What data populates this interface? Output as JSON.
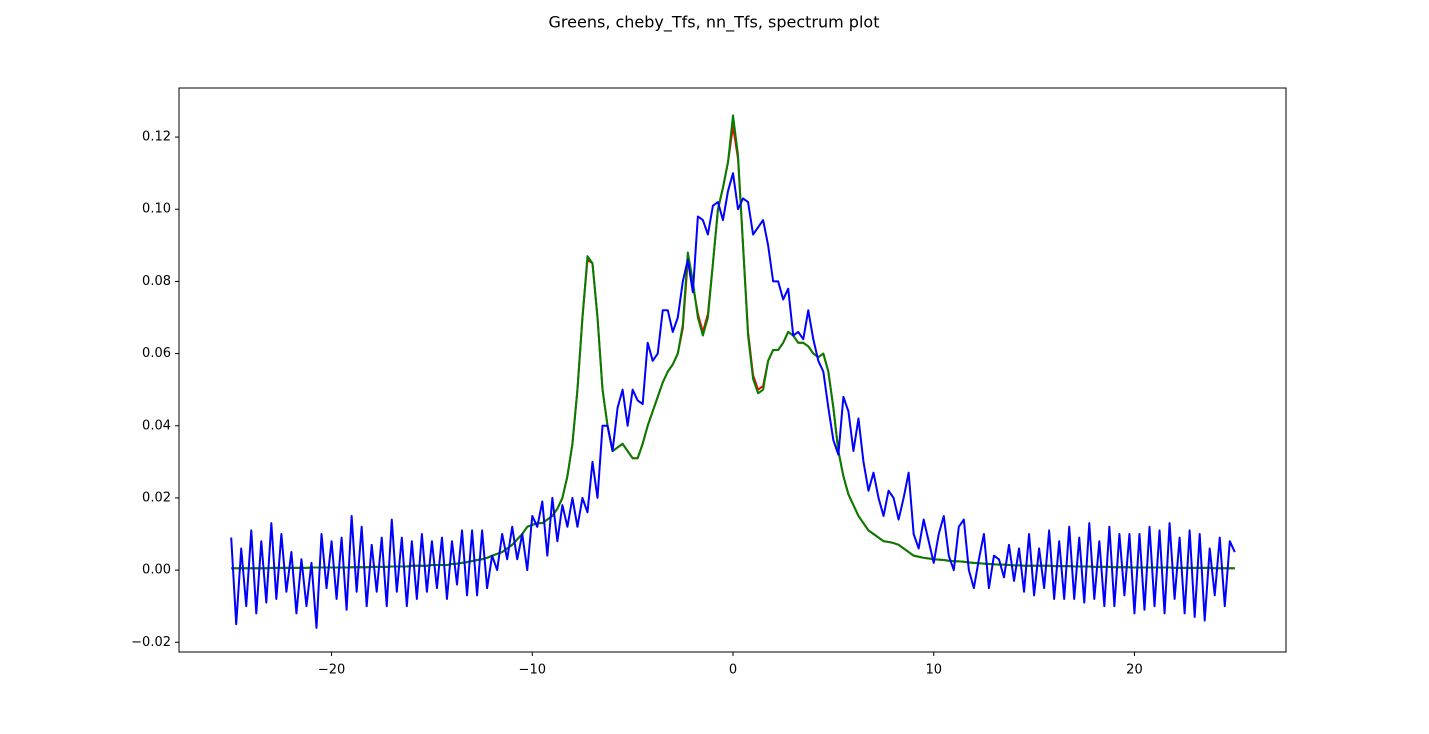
{
  "chart_data": {
    "type": "line",
    "title": "Greens, cheby_Tfs, nn_Tfs, spectrum plot",
    "x": [
      -25,
      -24.75,
      -24.5,
      -24.25,
      -24,
      -23.75,
      -23.5,
      -23.25,
      -23,
      -22.75,
      -22.5,
      -22.25,
      -22,
      -21.75,
      -21.5,
      -21.25,
      -21,
      -20.75,
      -20.5,
      -20.25,
      -20,
      -19.75,
      -19.5,
      -19.25,
      -19,
      -18.75,
      -18.5,
      -18.25,
      -18,
      -17.75,
      -17.5,
      -17.25,
      -17,
      -16.75,
      -16.5,
      -16.25,
      -16,
      -15.75,
      -15.5,
      -15.25,
      -15,
      -14.75,
      -14.5,
      -14.25,
      -14,
      -13.75,
      -13.5,
      -13.25,
      -13,
      -12.75,
      -12.5,
      -12.25,
      -12,
      -11.75,
      -11.5,
      -11.25,
      -11,
      -10.75,
      -10.5,
      -10.25,
      -10,
      -9.75,
      -9.5,
      -9.25,
      -9,
      -8.75,
      -8.5,
      -8.25,
      -8,
      -7.75,
      -7.5,
      -7.25,
      -7,
      -6.75,
      -6.5,
      -6.25,
      -6,
      -5.75,
      -5.5,
      -5.25,
      -5,
      -4.75,
      -4.5,
      -4.25,
      -4,
      -3.75,
      -3.5,
      -3.25,
      -3,
      -2.75,
      -2.5,
      -2.25,
      -2,
      -1.75,
      -1.5,
      -1.25,
      -1,
      -0.75,
      -0.5,
      -0.25,
      0,
      0.25,
      0.5,
      0.75,
      1,
      1.25,
      1.5,
      1.75,
      2,
      2.25,
      2.5,
      2.75,
      3,
      3.25,
      3.5,
      3.75,
      4,
      4.25,
      4.5,
      4.75,
      5,
      5.25,
      5.5,
      5.75,
      6,
      6.25,
      6.5,
      6.75,
      7,
      7.25,
      7.5,
      7.75,
      8,
      8.25,
      8.5,
      8.75,
      9,
      9.25,
      9.5,
      9.75,
      10,
      10.25,
      10.5,
      10.75,
      11,
      11.25,
      11.5,
      11.75,
      12,
      12.25,
      12.5,
      12.75,
      13,
      13.25,
      13.5,
      13.75,
      14,
      14.25,
      14.5,
      14.75,
      15,
      15.25,
      15.5,
      15.75,
      16,
      16.25,
      16.5,
      16.75,
      17,
      17.25,
      17.5,
      17.75,
      18,
      18.25,
      18.5,
      18.75,
      19,
      19.25,
      19.5,
      19.75,
      20,
      20.25,
      20.5,
      20.75,
      21,
      21.25,
      21.5,
      21.75,
      22,
      22.25,
      22.5,
      22.75,
      23,
      23.25,
      23.5,
      23.75,
      24,
      24.25,
      24.5,
      24.75,
      25
    ],
    "series": [
      {
        "color": "#ff0000",
        "values": [
          0.0005,
          0.0005,
          0.0005,
          0.0005,
          0.0005,
          0.0005,
          0.0005,
          0.0005,
          0.0006,
          0.0006,
          0.0006,
          0.0006,
          0.0006,
          0.0006,
          0.0006,
          0.0006,
          0.0007,
          0.0007,
          0.0007,
          0.0007,
          0.0007,
          0.0007,
          0.0007,
          0.0007,
          0.0008,
          0.0008,
          0.0008,
          0.0008,
          0.0009,
          0.0009,
          0.0009,
          0.0009,
          0.001,
          0.001,
          0.001,
          0.001,
          0.0012,
          0.0012,
          0.0012,
          0.0012,
          0.0014,
          0.0014,
          0.0014,
          0.0014,
          0.0017,
          0.0018,
          0.002,
          0.0022,
          0.0025,
          0.0028,
          0.003,
          0.0034,
          0.004,
          0.0045,
          0.005,
          0.006,
          0.007,
          0.0085,
          0.01,
          0.012,
          0.0125,
          0.013,
          0.013,
          0.014,
          0.015,
          0.017,
          0.02,
          0.026,
          0.035,
          0.05,
          0.07,
          0.086,
          0.085,
          0.07,
          0.05,
          0.04,
          0.033,
          0.034,
          0.035,
          0.033,
          0.031,
          0.031,
          0.035,
          0.04,
          0.044,
          0.048,
          0.052,
          0.055,
          0.057,
          0.06,
          0.067,
          0.086,
          0.079,
          0.071,
          0.066,
          0.071,
          0.085,
          0.1,
          0.106,
          0.113,
          0.123,
          0.114,
          0.09,
          0.066,
          0.054,
          0.05,
          0.051,
          0.058,
          0.061,
          0.061,
          0.063,
          0.066,
          0.065,
          0.063,
          0.063,
          0.062,
          0.06,
          0.059,
          0.06,
          0.055,
          0.045,
          0.033,
          0.026,
          0.021,
          0.018,
          0.015,
          0.013,
          0.011,
          0.01,
          0.009,
          0.008,
          0.0078,
          0.0075,
          0.007,
          0.006,
          0.005,
          0.004,
          0.0037,
          0.0034,
          0.0032,
          0.003,
          0.0029,
          0.0028,
          0.0026,
          0.0025,
          0.0024,
          0.0023,
          0.0021,
          0.002,
          0.0019,
          0.0018,
          0.0017,
          0.0016,
          0.0015,
          0.0015,
          0.0014,
          0.0013,
          0.0013,
          0.0012,
          0.0012,
          0.0012,
          0.0012,
          0.0012,
          0.0012,
          0.0011,
          0.0011,
          0.0011,
          0.0011,
          0.001,
          0.001,
          0.001,
          0.001,
          0.0009,
          0.0009,
          0.0009,
          0.0009,
          0.0008,
          0.0008,
          0.0008,
          0.0008,
          0.0007,
          0.0007,
          0.0007,
          0.0007,
          0.0007,
          0.0007,
          0.0007,
          0.0007,
          0.0006,
          0.0006,
          0.0006,
          0.0006,
          0.0006,
          0.0006,
          0.0006,
          0.0006,
          0.0005,
          0.0005,
          0.0005,
          0.0005,
          0.0005
        ]
      },
      {
        "color": "#008000",
        "values": [
          0.0005,
          0.0005,
          0.0005,
          0.0005,
          0.0005,
          0.0005,
          0.0005,
          0.0005,
          0.0006,
          0.0006,
          0.0006,
          0.0006,
          0.0006,
          0.0006,
          0.0006,
          0.0006,
          0.0007,
          0.0007,
          0.0007,
          0.0007,
          0.0007,
          0.0007,
          0.0007,
          0.0007,
          0.0008,
          0.0008,
          0.0008,
          0.0008,
          0.0009,
          0.0009,
          0.0009,
          0.0009,
          0.001,
          0.001,
          0.001,
          0.001,
          0.0012,
          0.0012,
          0.0012,
          0.0012,
          0.0014,
          0.0014,
          0.0014,
          0.0014,
          0.0017,
          0.0018,
          0.002,
          0.0022,
          0.0025,
          0.0028,
          0.003,
          0.0034,
          0.004,
          0.0045,
          0.005,
          0.006,
          0.007,
          0.0085,
          0.01,
          0.012,
          0.0125,
          0.013,
          0.013,
          0.014,
          0.015,
          0.017,
          0.02,
          0.026,
          0.035,
          0.05,
          0.07,
          0.087,
          0.085,
          0.07,
          0.05,
          0.04,
          0.033,
          0.034,
          0.035,
          0.033,
          0.031,
          0.031,
          0.035,
          0.04,
          0.044,
          0.048,
          0.052,
          0.055,
          0.057,
          0.06,
          0.068,
          0.088,
          0.08,
          0.07,
          0.065,
          0.07,
          0.085,
          0.1,
          0.106,
          0.113,
          0.126,
          0.115,
          0.09,
          0.065,
          0.053,
          0.049,
          0.05,
          0.058,
          0.061,
          0.061,
          0.063,
          0.066,
          0.065,
          0.063,
          0.063,
          0.062,
          0.06,
          0.059,
          0.06,
          0.055,
          0.045,
          0.033,
          0.026,
          0.021,
          0.018,
          0.015,
          0.013,
          0.011,
          0.01,
          0.009,
          0.008,
          0.0078,
          0.0075,
          0.007,
          0.006,
          0.005,
          0.004,
          0.0037,
          0.0034,
          0.0032,
          0.003,
          0.0029,
          0.0028,
          0.0026,
          0.0025,
          0.0024,
          0.0023,
          0.0021,
          0.002,
          0.0019,
          0.0018,
          0.0017,
          0.0016,
          0.0015,
          0.0015,
          0.0014,
          0.0013,
          0.0013,
          0.0012,
          0.0012,
          0.0012,
          0.0012,
          0.0012,
          0.0012,
          0.0011,
          0.0011,
          0.0011,
          0.0011,
          0.001,
          0.001,
          0.001,
          0.001,
          0.0009,
          0.0009,
          0.0009,
          0.0009,
          0.0008,
          0.0008,
          0.0008,
          0.0008,
          0.0007,
          0.0007,
          0.0007,
          0.0007,
          0.0007,
          0.0007,
          0.0007,
          0.0007,
          0.0006,
          0.0006,
          0.0006,
          0.0006,
          0.0006,
          0.0006,
          0.0006,
          0.0006,
          0.0005,
          0.0005,
          0.0005,
          0.0005,
          0.0005
        ]
      },
      {
        "color": "#0000ff",
        "values": [
          0.009,
          -0.015,
          0.006,
          -0.01,
          0.011,
          -0.012,
          0.008,
          -0.009,
          0.013,
          -0.008,
          0.01,
          -0.006,
          0.005,
          -0.012,
          0.003,
          -0.01,
          0.002,
          -0.016,
          0.01,
          -0.005,
          0.008,
          -0.008,
          0.009,
          -0.011,
          0.015,
          -0.006,
          0.012,
          -0.01,
          0.007,
          -0.006,
          0.009,
          -0.01,
          0.014,
          -0.006,
          0.009,
          -0.01,
          0.008,
          -0.008,
          0.01,
          -0.006,
          0.008,
          -0.005,
          0.009,
          -0.008,
          0.008,
          -0.004,
          0.011,
          -0.007,
          0.011,
          -0.007,
          0.011,
          -0.005,
          0.004,
          0.0,
          0.01,
          0.003,
          0.012,
          0.003,
          0.01,
          0.0,
          0.015,
          0.012,
          0.019,
          0.004,
          0.02,
          0.008,
          0.018,
          0.012,
          0.02,
          0.012,
          0.02,
          0.016,
          0.03,
          0.02,
          0.04,
          0.04,
          0.033,
          0.045,
          0.05,
          0.04,
          0.05,
          0.047,
          0.046,
          0.063,
          0.058,
          0.06,
          0.072,
          0.072,
          0.066,
          0.07,
          0.08,
          0.086,
          0.077,
          0.098,
          0.097,
          0.093,
          0.101,
          0.102,
          0.097,
          0.105,
          0.11,
          0.1,
          0.103,
          0.102,
          0.093,
          0.095,
          0.097,
          0.09,
          0.08,
          0.08,
          0.075,
          0.078,
          0.065,
          0.066,
          0.064,
          0.072,
          0.064,
          0.058,
          0.055,
          0.045,
          0.036,
          0.032,
          0.048,
          0.044,
          0.033,
          0.042,
          0.03,
          0.022,
          0.027,
          0.02,
          0.015,
          0.022,
          0.02,
          0.014,
          0.02,
          0.027,
          0.01,
          0.006,
          0.014,
          0.008,
          0.002,
          0.01,
          0.015,
          0.004,
          0.0,
          0.012,
          0.014,
          0.0,
          -0.005,
          0.003,
          0.01,
          -0.005,
          0.004,
          0.003,
          -0.002,
          0.007,
          -0.003,
          0.006,
          -0.006,
          0.01,
          -0.007,
          0.006,
          -0.005,
          0.011,
          -0.008,
          0.008,
          -0.008,
          0.012,
          -0.008,
          0.009,
          -0.009,
          0.013,
          -0.008,
          0.008,
          -0.01,
          0.012,
          -0.01,
          0.01,
          -0.007,
          0.01,
          -0.012,
          0.01,
          -0.011,
          0.012,
          -0.01,
          0.011,
          -0.012,
          0.013,
          -0.008,
          0.009,
          -0.012,
          0.011,
          -0.013,
          0.01,
          -0.014,
          0.006,
          -0.007,
          0.009,
          -0.01,
          0.008,
          0.005
        ]
      }
    ],
    "xlim": [
      -27.6,
      27.55
    ],
    "ylim": [
      -0.0227,
      0.1336
    ],
    "xticks": [
      {
        "value": -20,
        "label": "−20"
      },
      {
        "value": -10,
        "label": "−10"
      },
      {
        "value": 0,
        "label": "0"
      },
      {
        "value": 10,
        "label": "10"
      },
      {
        "value": 20,
        "label": "20"
      }
    ],
    "yticks": [
      {
        "value": -0.02,
        "label": "−0.02"
      },
      {
        "value": 0,
        "label": "0.00"
      },
      {
        "value": 0.02,
        "label": "0.02"
      },
      {
        "value": 0.04,
        "label": "0.04"
      },
      {
        "value": 0.06,
        "label": "0.06"
      },
      {
        "value": 0.08,
        "label": "0.08"
      },
      {
        "value": 0.1,
        "label": "0.10"
      },
      {
        "value": 0.12,
        "label": "0.12"
      }
    ],
    "grid": false
  }
}
